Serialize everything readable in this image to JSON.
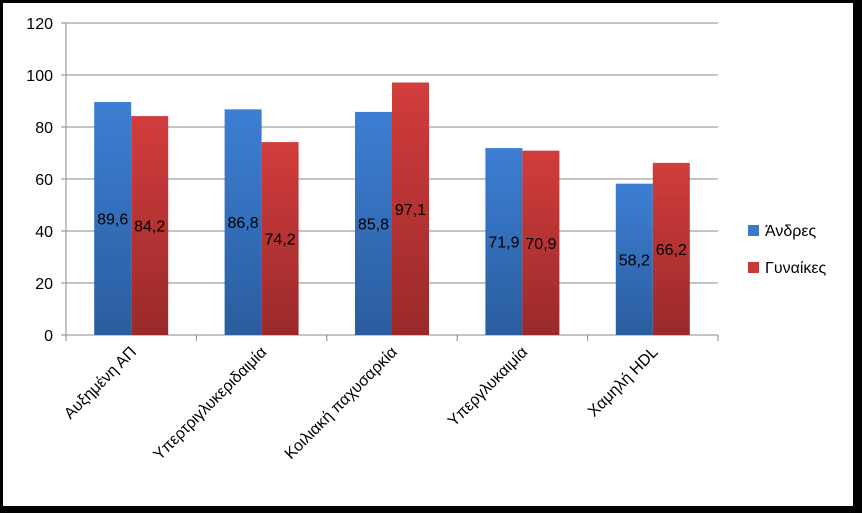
{
  "chart_data": {
    "type": "bar",
    "title": "",
    "xlabel": "",
    "ylabel": "",
    "ylim": [
      0,
      120
    ],
    "yticks": [
      0,
      20,
      40,
      60,
      80,
      100,
      120
    ],
    "grid": true,
    "legend_position": "right",
    "categories": [
      "Αυξημένη ΑΠ",
      "Υπερτριγλυκεριδαιμία",
      "Κοιλιακή παχυσαρκία",
      "Υπεργλυκαιμία",
      "Χαμηλή HDL"
    ],
    "series": [
      {
        "name": "Άνδρες",
        "values": [
          89.6,
          86.8,
          85.8,
          71.9,
          58.2
        ],
        "labels": [
          "89,6",
          "86,8",
          "85,8",
          "71,9",
          "58,2"
        ],
        "color": "#3a78c8"
      },
      {
        "name": "Γυναίκες",
        "values": [
          84.2,
          74.2,
          97.1,
          70.9,
          66.2
        ],
        "labels": [
          "84,2",
          "74,2",
          "97,1",
          "70,9",
          "66,2"
        ],
        "color": "#c83a3a"
      }
    ]
  }
}
